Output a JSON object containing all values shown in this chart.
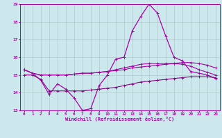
{
  "xlabel": "Windchill (Refroidissement éolien,°C)",
  "xlim": [
    -0.5,
    23.5
  ],
  "ylim": [
    13,
    19
  ],
  "xtick_labels": [
    "0",
    "1",
    "2",
    "3",
    "4",
    "5",
    "6",
    "7",
    "8",
    "9",
    "10",
    "11",
    "12",
    "13",
    "14",
    "15",
    "16",
    "17",
    "18",
    "19",
    "20",
    "21",
    "22",
    "23"
  ],
  "ytick_labels": [
    "13",
    "14",
    "15",
    "16",
    "17",
    "18",
    "19"
  ],
  "background_color": "#cce8ec",
  "grid_color": "#aacccc",
  "line_color": "#aa00aa",
  "line_color2": "#880088",
  "hours": [
    0,
    1,
    2,
    3,
    4,
    5,
    6,
    7,
    8,
    9,
    10,
    11,
    12,
    13,
    14,
    15,
    16,
    17,
    18,
    19,
    20,
    21,
    22,
    23
  ],
  "line1": [
    15.3,
    15.1,
    14.7,
    13.9,
    14.5,
    14.2,
    13.7,
    13.0,
    13.1,
    14.4,
    15.0,
    15.9,
    16.0,
    17.5,
    18.3,
    19.0,
    18.5,
    17.2,
    16.0,
    15.8,
    15.2,
    15.1,
    15.0,
    14.8
  ],
  "line2": [
    15.3,
    15.1,
    15.0,
    15.0,
    15.0,
    15.0,
    15.05,
    15.1,
    15.1,
    15.15,
    15.2,
    15.25,
    15.3,
    15.4,
    15.45,
    15.5,
    15.55,
    15.6,
    15.65,
    15.7,
    15.7,
    15.65,
    15.55,
    15.4
  ],
  "line3": [
    15.3,
    15.1,
    15.0,
    15.0,
    15.0,
    15.0,
    15.05,
    15.1,
    15.1,
    15.15,
    15.2,
    15.3,
    15.4,
    15.5,
    15.6,
    15.65,
    15.65,
    15.65,
    15.65,
    15.6,
    15.5,
    15.3,
    15.15,
    15.0
  ],
  "line4": [
    15.0,
    15.0,
    14.75,
    14.1,
    14.1,
    14.1,
    14.1,
    14.1,
    14.15,
    14.2,
    14.25,
    14.3,
    14.4,
    14.5,
    14.6,
    14.65,
    14.7,
    14.75,
    14.8,
    14.85,
    14.9,
    14.9,
    14.9,
    14.85
  ]
}
